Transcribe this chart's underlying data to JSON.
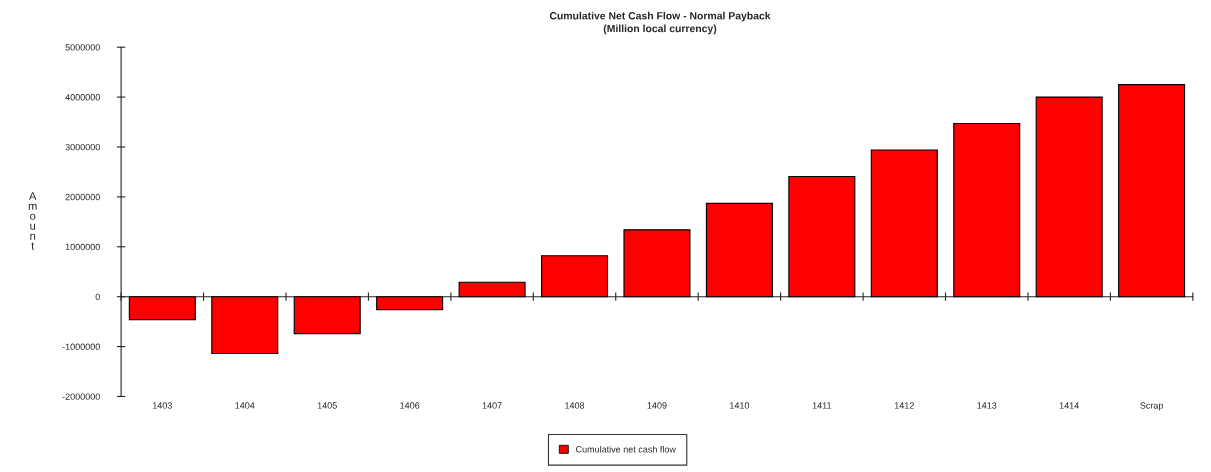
{
  "chart_data": {
    "type": "bar",
    "title": "Cumulative Net Cash Flow - Normal Payback",
    "subtitle": "(Million local currency)",
    "ylabel": "Amount",
    "categories": [
      "1403",
      "1404",
      "1405",
      "1406",
      "1407",
      "1408",
      "1409",
      "1410",
      "1411",
      "1412",
      "1413",
      "1414",
      "Scrap"
    ],
    "series": [
      {
        "name": "Cumulative net cash flow",
        "color": "#ff0000",
        "values": [
          -460000,
          -1140000,
          -740000,
          -260000,
          290000,
          820000,
          1340000,
          1870000,
          2410000,
          2940000,
          3470000,
          4000000,
          4250000
        ]
      }
    ],
    "ylim": [
      -2000000,
      5000000
    ],
    "yticks": [
      -2000000,
      -1000000,
      0,
      1000000,
      2000000,
      3000000,
      4000000,
      5000000
    ],
    "legend": "bottom"
  }
}
